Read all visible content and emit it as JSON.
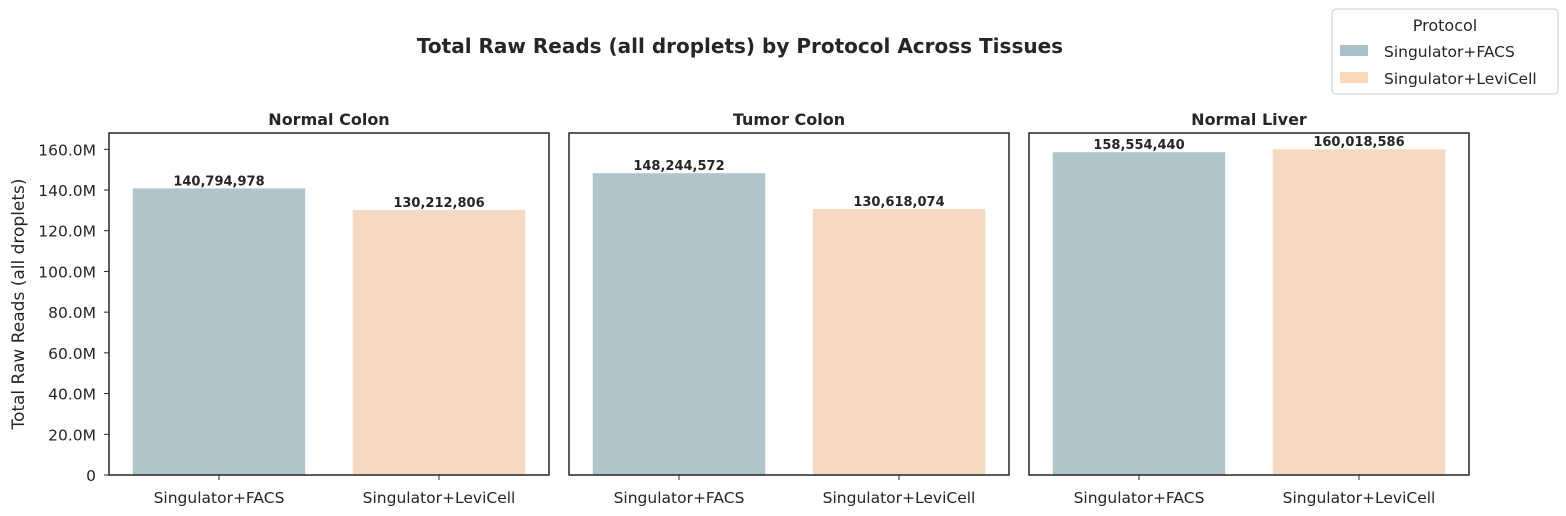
{
  "figure": {
    "title": "Total Raw Reads (all droplets) by Protocol Across Tissues"
  },
  "legend": {
    "title": "Protocol",
    "placement": "upper-right",
    "items": [
      {
        "label": "Singulator+FACS",
        "color": "#a9c0c8"
      },
      {
        "label": "Singulator+LeviCell",
        "color": "#fcd9b8"
      }
    ]
  },
  "colors": {
    "Singulator+FACS": "#b0c4cb",
    "Singulator+LeviCell": "#f5d9c0"
  },
  "chart_data": [
    {
      "type": "bar",
      "title": "Normal Colon",
      "categories": [
        "Singulator+FACS",
        "Singulator+LeviCell"
      ],
      "values": [
        140794978,
        130212806
      ],
      "value_labels": [
        "140,794,978",
        "130,212,806"
      ],
      "ylabel": "Total Raw Reads (all droplets)",
      "ylim": [
        0,
        168000000
      ],
      "yticks": [
        0,
        20000000,
        40000000,
        60000000,
        80000000,
        100000000,
        120000000,
        140000000,
        160000000
      ],
      "ytick_labels": [
        "0",
        "20.0M",
        "40.0M",
        "60.0M",
        "80.0M",
        "100.0M",
        "120.0M",
        "140.0M",
        "160.0M"
      ],
      "grid": false
    },
    {
      "type": "bar",
      "title": "Tumor Colon",
      "categories": [
        "Singulator+FACS",
        "Singulator+LeviCell"
      ],
      "values": [
        148244572,
        130618074
      ],
      "value_labels": [
        "148,244,572",
        "130,618,074"
      ],
      "ylim": [
        0,
        168000000
      ],
      "grid": false
    },
    {
      "type": "bar",
      "title": "Normal Liver",
      "categories": [
        "Singulator+FACS",
        "Singulator+LeviCell"
      ],
      "values": [
        158554440,
        160018586
      ],
      "value_labels": [
        "158,554,440",
        "160,018,586"
      ],
      "ylim": [
        0,
        168000000
      ],
      "grid": false
    }
  ]
}
